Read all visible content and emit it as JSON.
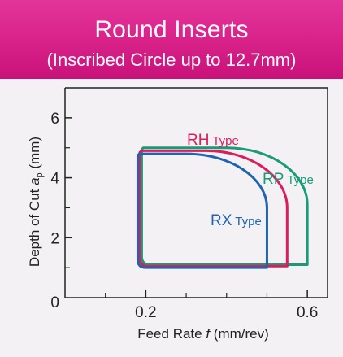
{
  "banner": {
    "title": "Round Inserts",
    "subtitle": "(Inscribed Circle up to 12.7mm)"
  },
  "colors": {
    "banner": "#d82188",
    "background": "#f3f1f3",
    "axis": "#222222",
    "RX": "#1f64ad",
    "RH": "#d81e5b",
    "RP": "#1a9b78"
  },
  "chart_data": {
    "type": "area",
    "title": "",
    "xlabel": "Feed Rate f (mm/rev)",
    "xlabel_parts": {
      "pre": "Feed Rate ",
      "italic": "f",
      "post": " (mm/rev)"
    },
    "ylabel": "Depth of Cut ap (mm)",
    "ylabel_parts": {
      "pre": "Depth of Cut ",
      "italic": "a",
      "sub": "p",
      "post": " (mm)"
    },
    "xlim": [
      0,
      0.65
    ],
    "ylim": [
      0,
      7
    ],
    "xticks": [
      0.2,
      0.6
    ],
    "xtick_labels": [
      "0.2",
      "0.6"
    ],
    "xminor": [
      0.1,
      0.3,
      0.4,
      0.5
    ],
    "yticks": [
      0,
      2,
      4,
      6
    ],
    "ytick_labels": [
      "0",
      "2",
      "4",
      "6"
    ],
    "yminor": [
      1,
      3,
      5
    ],
    "grid": false,
    "legend": "none",
    "series": [
      {
        "name": "RP Type",
        "label_main": "RP",
        "label_sub": "Type",
        "color_key": "RP",
        "region": {
          "x_min": 0.19,
          "x_max": 0.6,
          "y_min": 1.1,
          "y_max": 5.0,
          "corner_x": 0.4,
          "corner_y": 3.1
        }
      },
      {
        "name": "RH Type",
        "label_main": "RH",
        "label_sub": "Type",
        "color_key": "RH",
        "region": {
          "x_min": 0.185,
          "x_max": 0.55,
          "y_min": 1.05,
          "y_max": 4.9,
          "corner_x": 0.35,
          "corner_y": 3.0
        }
      },
      {
        "name": "RX Type",
        "label_main": "RX",
        "label_sub": "Type",
        "color_key": "RX",
        "region": {
          "x_min": 0.18,
          "x_max": 0.5,
          "y_min": 1.0,
          "y_max": 4.8,
          "corner_x": 0.3,
          "corner_y": 3.0
        }
      }
    ]
  }
}
